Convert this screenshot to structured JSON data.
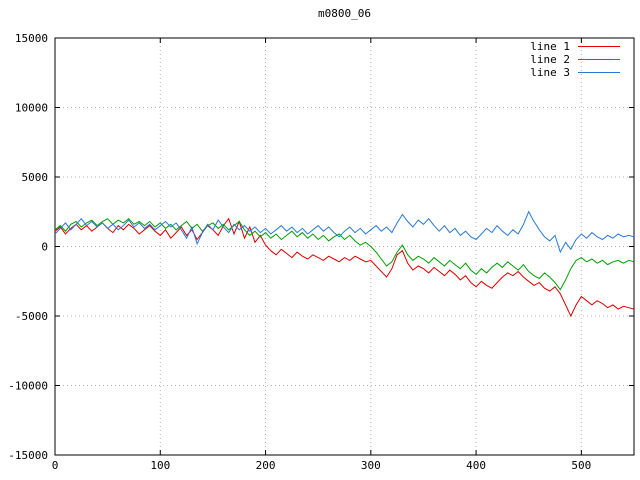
{
  "chart_data": {
    "type": "line",
    "title": "m0800_06",
    "xlabel": "",
    "ylabel": "",
    "xlim": [
      0,
      550
    ],
    "ylim": [
      -15000,
      15000
    ],
    "xticks": [
      0,
      100,
      200,
      300,
      400,
      500
    ],
    "yticks": [
      -15000,
      -10000,
      -5000,
      0,
      5000,
      10000,
      15000
    ],
    "grid": true,
    "grid_style": "dotted",
    "legend_position": "top-right-inside",
    "background_color": "#ffffff",
    "x_start": 0,
    "x_step": 5,
    "series": [
      {
        "name": "line 1",
        "color": "#e00000",
        "values": [
          1100,
          1400,
          900,
          1300,
          1600,
          1200,
          1500,
          1100,
          1400,
          1700,
          1300,
          1000,
          1500,
          1200,
          1600,
          1300,
          900,
          1200,
          1500,
          1100,
          800,
          1200,
          600,
          1000,
          1400,
          800,
          1200,
          500,
          1000,
          1500,
          1200,
          800,
          1500,
          2000,
          900,
          1800,
          600,
          1400,
          300,
          800,
          100,
          -300,
          -600,
          -200,
          -500,
          -800,
          -400,
          -700,
          -900,
          -600,
          -800,
          -1000,
          -700,
          -900,
          -1100,
          -800,
          -1000,
          -700,
          -900,
          -1100,
          -1000,
          -1400,
          -1800,
          -2200,
          -1600,
          -600,
          -300,
          -1200,
          -1700,
          -1400,
          -1600,
          -1900,
          -1500,
          -1800,
          -2100,
          -1700,
          -2000,
          -2400,
          -2100,
          -2600,
          -2900,
          -2500,
          -2800,
          -3000,
          -2600,
          -2200,
          -1900,
          -2100,
          -1800,
          -2200,
          -2500,
          -2800,
          -2600,
          -3000,
          -3200,
          -2900,
          -3400,
          -4200,
          -5000,
          -4200,
          -3600,
          -3900,
          -4200,
          -3900,
          -4100,
          -4400,
          -4200,
          -4500,
          -4300,
          -4400,
          -4500
        ]
      },
      {
        "name": "line 2",
        "color": "#00a000",
        "values": [
          1200,
          1500,
          1100,
          1600,
          1800,
          1400,
          1700,
          1900,
          1500,
          1800,
          2000,
          1600,
          1900,
          1700,
          2000,
          1600,
          1800,
          1500,
          1800,
          1400,
          1700,
          1300,
          1600,
          1200,
          1500,
          1800,
          1300,
          1600,
          1100,
          1500,
          1700,
          1300,
          1600,
          1200,
          1500,
          1800,
          1200,
          800,
          1100,
          700,
          1000,
          600,
          900,
          500,
          800,
          1100,
          700,
          1000,
          600,
          900,
          500,
          800,
          400,
          700,
          900,
          500,
          800,
          400,
          100,
          300,
          0,
          -400,
          -900,
          -1400,
          -1100,
          -400,
          100,
          -600,
          -1000,
          -700,
          -900,
          -1200,
          -800,
          -1100,
          -1400,
          -1000,
          -1300,
          -1600,
          -1200,
          -1700,
          -2000,
          -1600,
          -1900,
          -1500,
          -1200,
          -1500,
          -1100,
          -1400,
          -1700,
          -1300,
          -1800,
          -2100,
          -2300,
          -1900,
          -2200,
          -2600,
          -3100,
          -2400,
          -1600,
          -1000,
          -800,
          -1100,
          -900,
          -1200,
          -1000,
          -1300,
          -1100,
          -1000,
          -1200,
          -1000,
          -1100
        ]
      },
      {
        "name": "line 3",
        "color": "#2878d8",
        "values": [
          900,
          1300,
          1700,
          1200,
          1600,
          2000,
          1500,
          1800,
          1400,
          1700,
          1300,
          1600,
          1200,
          1500,
          1900,
          1400,
          1700,
          1300,
          1600,
          1200,
          1500,
          1800,
          1400,
          1700,
          1200,
          600,
          1400,
          200,
          1000,
          1600,
          1200,
          1900,
          1400,
          1000,
          1600,
          1200,
          1500,
          1100,
          1400,
          1000,
          1300,
          900,
          1200,
          1500,
          1100,
          1400,
          1000,
          1300,
          900,
          1200,
          1500,
          1100,
          1400,
          1000,
          700,
          1100,
          1400,
          1000,
          1300,
          900,
          1200,
          1500,
          1100,
          1400,
          1000,
          1700,
          2300,
          1800,
          1400,
          1900,
          1600,
          2000,
          1500,
          1100,
          1500,
          1000,
          1300,
          800,
          1100,
          700,
          500,
          900,
          1300,
          1000,
          1500,
          1100,
          800,
          1200,
          900,
          1600,
          2500,
          1800,
          1200,
          700,
          400,
          800,
          -400,
          300,
          -200,
          500,
          900,
          600,
          1000,
          700,
          500,
          800,
          600,
          900,
          700,
          800,
          700
        ]
      }
    ]
  }
}
